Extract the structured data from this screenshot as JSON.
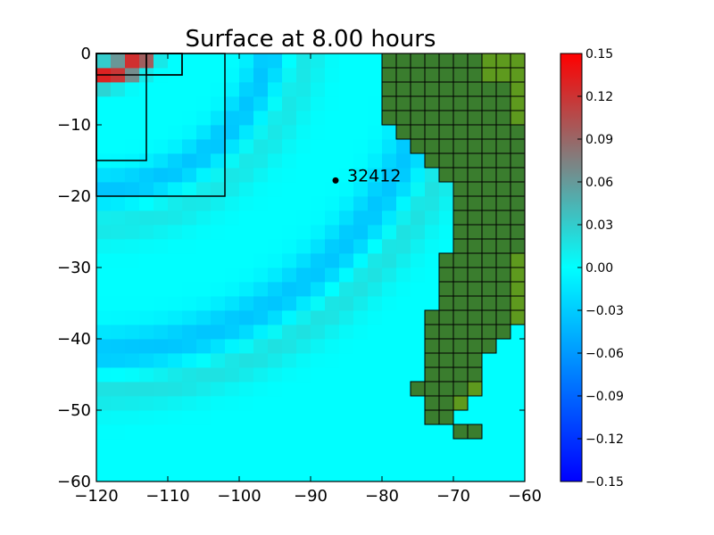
{
  "chart_data": {
    "type": "heatmap",
    "title": "Surface at 8.00 hours",
    "xlim": [
      -120,
      -60
    ],
    "ylim": [
      -60,
      0
    ],
    "xticks": [
      "−120",
      "−110",
      "−100",
      "−90",
      "−80",
      "−70",
      "−60"
    ],
    "yticks": [
      "0",
      "−10",
      "−20",
      "−30",
      "−40",
      "−50",
      "−60"
    ],
    "xtick_values": [
      -120,
      -110,
      -100,
      -90,
      -80,
      -70,
      -60
    ],
    "ytick_values": [
      0,
      -10,
      -20,
      -30,
      -40,
      -50,
      -60
    ],
    "colorbar": {
      "range": [
        -0.15,
        0.15
      ],
      "tick_values": [
        0.15,
        0.12,
        0.09,
        0.06,
        0.03,
        0.0,
        -0.03,
        -0.06,
        -0.09,
        -0.12,
        -0.15
      ],
      "tick_labels": [
        "0.15",
        "0.12",
        "0.09",
        "0.06",
        "0.03",
        "0.00",
        "−0.03",
        "−0.06",
        "−0.09",
        "−0.12",
        "−0.15"
      ],
      "colormap": [
        "#0000ff",
        "#00ffff",
        "#808080",
        "#ff0000"
      ]
    },
    "background_value": 0.0,
    "land_color": "#3a7d2e",
    "land_light_color": "#5e9a1e",
    "land_rows": [
      [
        -80,
        -70
      ],
      [
        -80,
        -70
      ],
      [
        -80,
        -70
      ],
      [
        -80,
        -70
      ],
      [
        -80,
        -70
      ],
      [
        -80,
        -70
      ],
      [
        -80,
        -70
      ],
      [
        -80,
        -70
      ],
      [
        -80,
        -70
      ],
      [
        -80,
        -70
      ],
      [
        -78,
        -70
      ],
      [
        -78,
        -70
      ],
      [
        -76,
        -70
      ],
      [
        -76,
        -70
      ],
      [
        -74,
        -70
      ],
      [
        -74,
        -70
      ],
      [
        -72,
        -70
      ],
      [
        -72,
        -70
      ],
      [
        -70,
        -70
      ],
      [
        -70,
        -70
      ],
      [
        -70,
        -70
      ],
      [
        -70,
        -70
      ],
      [
        -70,
        -70
      ],
      [
        -70,
        -70
      ],
      [
        -70,
        -70
      ],
      [
        -70,
        -70
      ],
      [
        -70,
        -70
      ],
      [
        -70,
        -70
      ],
      [
        -72,
        -70
      ],
      [
        -72,
        -70
      ],
      [
        -72,
        -70
      ],
      [
        -72,
        -70
      ],
      [
        -72,
        -70
      ],
      [
        -72,
        -70
      ],
      [
        -72,
        -70
      ],
      [
        -72,
        -70
      ],
      [
        -72,
        -70
      ],
      [
        -72,
        -70
      ],
      [
        -72,
        -70
      ],
      [
        -72,
        -70
      ],
      [
        -74,
        -70
      ],
      [
        -74,
        -70
      ],
      [
        -74,
        -70
      ],
      [
        -74,
        -70
      ],
      [
        -74,
        -70
      ],
      [
        -74,
        -70
      ],
      [
        -74,
        -70
      ],
      [
        -74,
        -70
      ],
      [
        -74,
        -70
      ],
      [
        -74,
        -70
      ],
      [
        -74,
        -70
      ],
      [
        -74,
        -70
      ],
      [
        -74,
        -70
      ],
      [
        -74,
        -70
      ],
      [
        -74,
        -70
      ],
      [
        -74,
        -70
      ],
      [
        -74,
        -70
      ],
      [
        -74,
        -70
      ],
      [
        -74,
        -70
      ],
      [
        -74,
        -70
      ]
    ],
    "land_cells": [
      {
        "x": -80,
        "y": -2
      },
      {
        "x": -78,
        "y": -2
      },
      {
        "x": -76,
        "y": -2
      },
      {
        "x": -74,
        "y": -2
      },
      {
        "x": -72,
        "y": -2
      },
      {
        "x": -70,
        "y": -2
      },
      {
        "x": -68,
        "y": -2
      },
      {
        "x": -66,
        "y": -2
      },
      {
        "x": -64,
        "y": -2
      },
      {
        "x": -62,
        "y": -2
      },
      {
        "x": -80,
        "y": -4
      },
      {
        "x": -78,
        "y": -4
      },
      {
        "x": -76,
        "y": -4
      },
      {
        "x": -74,
        "y": -4
      },
      {
        "x": -72,
        "y": -4
      },
      {
        "x": -70,
        "y": -4
      },
      {
        "x": -68,
        "y": -4
      },
      {
        "x": -66,
        "y": -4
      },
      {
        "x": -64,
        "y": -4
      },
      {
        "x": -62,
        "y": -4
      },
      {
        "x": -80,
        "y": -6
      },
      {
        "x": -78,
        "y": -6
      },
      {
        "x": -76,
        "y": -6
      },
      {
        "x": -74,
        "y": -6
      },
      {
        "x": -72,
        "y": -6
      },
      {
        "x": -70,
        "y": -6
      },
      {
        "x": -68,
        "y": -6
      },
      {
        "x": -66,
        "y": -6
      },
      {
        "x": -64,
        "y": -6
      },
      {
        "x": -62,
        "y": -6
      },
      {
        "x": -80,
        "y": -8
      },
      {
        "x": -78,
        "y": -8
      },
      {
        "x": -76,
        "y": -8
      },
      {
        "x": -74,
        "y": -8
      },
      {
        "x": -72,
        "y": -8
      },
      {
        "x": -70,
        "y": -8
      },
      {
        "x": -68,
        "y": -8
      },
      {
        "x": -66,
        "y": -8
      },
      {
        "x": -64,
        "y": -8
      },
      {
        "x": -62,
        "y": -8
      },
      {
        "x": -80,
        "y": -10
      },
      {
        "x": -78,
        "y": -10
      },
      {
        "x": -76,
        "y": -10
      },
      {
        "x": -74,
        "y": -10
      },
      {
        "x": -72,
        "y": -10
      },
      {
        "x": -70,
        "y": -10
      },
      {
        "x": -68,
        "y": -10
      },
      {
        "x": -66,
        "y": -10
      },
      {
        "x": -64,
        "y": -10
      },
      {
        "x": -62,
        "y": -10
      },
      {
        "x": -78,
        "y": -12
      },
      {
        "x": -76,
        "y": -12
      },
      {
        "x": -74,
        "y": -12
      },
      {
        "x": -72,
        "y": -12
      },
      {
        "x": -70,
        "y": -12
      },
      {
        "x": -68,
        "y": -12
      },
      {
        "x": -66,
        "y": -12
      },
      {
        "x": -64,
        "y": -12
      },
      {
        "x": -62,
        "y": -12
      },
      {
        "x": -76,
        "y": -14
      },
      {
        "x": -74,
        "y": -14
      },
      {
        "x": -72,
        "y": -14
      },
      {
        "x": -70,
        "y": -14
      },
      {
        "x": -68,
        "y": -14
      },
      {
        "x": -66,
        "y": -14
      },
      {
        "x": -64,
        "y": -14
      },
      {
        "x": -62,
        "y": -14
      },
      {
        "x": -74,
        "y": -16
      },
      {
        "x": -72,
        "y": -16
      },
      {
        "x": -70,
        "y": -16
      },
      {
        "x": -68,
        "y": -16
      },
      {
        "x": -66,
        "y": -16
      },
      {
        "x": -64,
        "y": -16
      },
      {
        "x": -62,
        "y": -16
      },
      {
        "x": -72,
        "y": -18
      },
      {
        "x": -70,
        "y": -18
      },
      {
        "x": -68,
        "y": -18
      },
      {
        "x": -66,
        "y": -18
      },
      {
        "x": -64,
        "y": -18
      },
      {
        "x": -62,
        "y": -18
      },
      {
        "x": -70,
        "y": -20
      },
      {
        "x": -68,
        "y": -20
      },
      {
        "x": -66,
        "y": -20
      },
      {
        "x": -64,
        "y": -20
      },
      {
        "x": -62,
        "y": -20
      },
      {
        "x": -70,
        "y": -22
      },
      {
        "x": -68,
        "y": -22
      },
      {
        "x": -66,
        "y": -22
      },
      {
        "x": -64,
        "y": -22
      },
      {
        "x": -62,
        "y": -22
      },
      {
        "x": -70,
        "y": -24
      },
      {
        "x": -68,
        "y": -24
      },
      {
        "x": -66,
        "y": -24
      },
      {
        "x": -64,
        "y": -24
      },
      {
        "x": -62,
        "y": -24
      },
      {
        "x": -70,
        "y": -26
      },
      {
        "x": -68,
        "y": -26
      },
      {
        "x": -66,
        "y": -26
      },
      {
        "x": -64,
        "y": -26
      },
      {
        "x": -62,
        "y": -26
      },
      {
        "x": -70,
        "y": -28
      },
      {
        "x": -68,
        "y": -28
      },
      {
        "x": -66,
        "y": -28
      },
      {
        "x": -64,
        "y": -28
      },
      {
        "x": -62,
        "y": -28
      },
      {
        "x": -72,
        "y": -30
      },
      {
        "x": -70,
        "y": -30
      },
      {
        "x": -68,
        "y": -30
      },
      {
        "x": -66,
        "y": -30
      },
      {
        "x": -64,
        "y": -30
      },
      {
        "x": -62,
        "y": -30
      },
      {
        "x": -72,
        "y": -32
      },
      {
        "x": -70,
        "y": -32
      },
      {
        "x": -68,
        "y": -32
      },
      {
        "x": -66,
        "y": -32
      },
      {
        "x": -64,
        "y": -32
      },
      {
        "x": -62,
        "y": -32
      },
      {
        "x": -72,
        "y": -34
      },
      {
        "x": -70,
        "y": -34
      },
      {
        "x": -68,
        "y": -34
      },
      {
        "x": -66,
        "y": -34
      },
      {
        "x": -64,
        "y": -34
      },
      {
        "x": -62,
        "y": -34
      },
      {
        "x": -72,
        "y": -36
      },
      {
        "x": -70,
        "y": -36
      },
      {
        "x": -68,
        "y": -36
      },
      {
        "x": -66,
        "y": -36
      },
      {
        "x": -64,
        "y": -36
      },
      {
        "x": -62,
        "y": -36
      },
      {
        "x": -74,
        "y": -38
      },
      {
        "x": -72,
        "y": -38
      },
      {
        "x": -70,
        "y": -38
      },
      {
        "x": -68,
        "y": -38
      },
      {
        "x": -66,
        "y": -38
      },
      {
        "x": -64,
        "y": -38
      },
      {
        "x": -62,
        "y": -38
      },
      {
        "x": -74,
        "y": -40
      },
      {
        "x": -72,
        "y": -40
      },
      {
        "x": -70,
        "y": -40
      },
      {
        "x": -68,
        "y": -40
      },
      {
        "x": -66,
        "y": -40
      },
      {
        "x": -64,
        "y": -40
      },
      {
        "x": -74,
        "y": -42
      },
      {
        "x": -72,
        "y": -42
      },
      {
        "x": -70,
        "y": -42
      },
      {
        "x": -68,
        "y": -42
      },
      {
        "x": -66,
        "y": -42
      },
      {
        "x": -74,
        "y": -44
      },
      {
        "x": -72,
        "y": -44
      },
      {
        "x": -70,
        "y": -44
      },
      {
        "x": -68,
        "y": -44
      },
      {
        "x": -74,
        "y": -46
      },
      {
        "x": -72,
        "y": -46
      },
      {
        "x": -70,
        "y": -46
      },
      {
        "x": -68,
        "y": -46
      },
      {
        "x": -76,
        "y": -48
      },
      {
        "x": -74,
        "y": -48
      },
      {
        "x": -72,
        "y": -48
      },
      {
        "x": -70,
        "y": -48
      },
      {
        "x": -68,
        "y": -48
      },
      {
        "x": -74,
        "y": -50
      },
      {
        "x": -72,
        "y": -50
      },
      {
        "x": -70,
        "y": -50
      },
      {
        "x": -74,
        "y": -52
      },
      {
        "x": -72,
        "y": -52
      },
      {
        "x": -70,
        "y": -54
      },
      {
        "x": -68,
        "y": -54
      }
    ],
    "light_land_cells": [
      {
        "x": -66,
        "y": -2
      },
      {
        "x": -64,
        "y": -2
      },
      {
        "x": -62,
        "y": -2
      },
      {
        "x": -66,
        "y": -4
      },
      {
        "x": -64,
        "y": -4
      },
      {
        "x": -62,
        "y": -4
      },
      {
        "x": -62,
        "y": -6
      },
      {
        "x": -62,
        "y": -8
      },
      {
        "x": -62,
        "y": -10
      },
      {
        "x": -62,
        "y": -30
      },
      {
        "x": -62,
        "y": -32
      },
      {
        "x": -62,
        "y": -34
      },
      {
        "x": -62,
        "y": -36
      },
      {
        "x": -62,
        "y": -38
      },
      {
        "x": -68,
        "y": -48
      },
      {
        "x": -70,
        "y": -50
      }
    ],
    "wave_fronts": [
      {
        "center": [
          -120,
          6
        ],
        "radius": 9,
        "value": 0.13,
        "spread": 1.6
      },
      {
        "center": [
          -120,
          6
        ],
        "radius": 25,
        "value": -0.035,
        "spread": 2.5
      },
      {
        "center": [
          -120,
          6
        ],
        "radius": 30,
        "value": 0.015,
        "spread": 2.8
      },
      {
        "center": [
          -120,
          6
        ],
        "radius": 48,
        "value": -0.035,
        "spread": 3.2
      },
      {
        "center": [
          -120,
          6
        ],
        "radius": 53,
        "value": 0.02,
        "spread": 3.0
      }
    ],
    "grid_boxes": [
      {
        "x": [
          -120,
          -108
        ],
        "y": [
          -3,
          0
        ]
      },
      {
        "x": [
          -113,
          -108
        ],
        "y": [
          -3,
          0
        ]
      },
      {
        "x": [
          -120,
          -113
        ],
        "y": [
          -15,
          0
        ]
      },
      {
        "x": [
          -120,
          -102
        ],
        "y": [
          -20,
          0
        ]
      }
    ],
    "gauge": {
      "x": -86.5,
      "y": -17.8,
      "label": "32412"
    }
  }
}
